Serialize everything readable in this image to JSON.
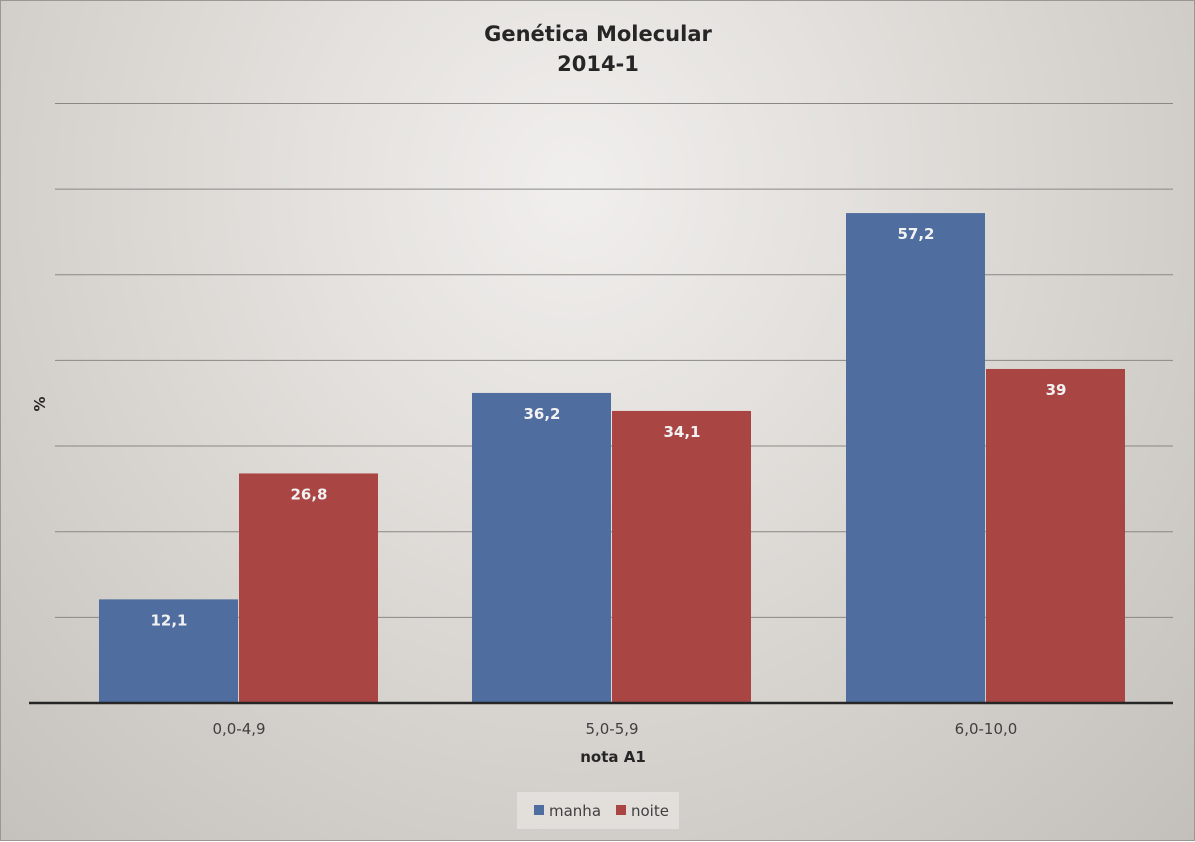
{
  "chart_data": {
    "type": "bar",
    "title": "Genética Molecular",
    "subtitle": "2014-1",
    "xlabel": "nota A1",
    "ylabel": "%",
    "categories": [
      "0,0-4,9",
      "5,0-5,9",
      "6,0-10,0"
    ],
    "series": [
      {
        "name": "manha",
        "color": "#4f6d9e",
        "values": [
          12.1,
          36.2,
          57.2
        ],
        "labels": [
          "12,1",
          "36,2",
          "57,2"
        ]
      },
      {
        "name": "noite",
        "color": "#a94643",
        "values": [
          26.8,
          34.1,
          39
        ],
        "labels": [
          "26,8",
          "34,1",
          "39"
        ]
      }
    ],
    "ylim": [
      0,
      70
    ],
    "ytick_step": 10,
    "y_tick_labels_shown": false,
    "grid": true,
    "legend_position": "bottom"
  }
}
